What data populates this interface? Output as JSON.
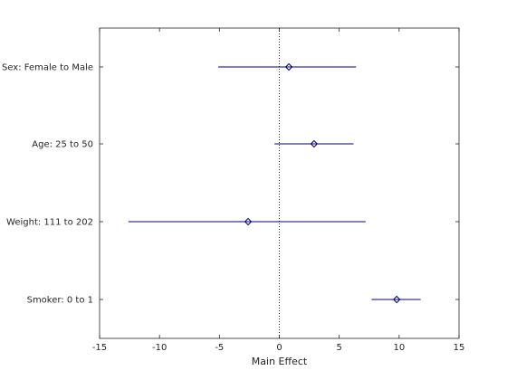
{
  "chart_data": {
    "type": "scatter",
    "title": "",
    "xlabel": "Main Effect",
    "ylabel": "",
    "xlim": [
      -15,
      15
    ],
    "xticks": [
      -15,
      -10,
      -5,
      0,
      5,
      10,
      15
    ],
    "grid": false,
    "reference_line": {
      "x": 0,
      "style": "dotted"
    },
    "colors": {
      "marker": "#00007f",
      "interval": "#00007f",
      "axes": "#262626",
      "reference": "#000000"
    },
    "rows": [
      {
        "label": "Sex: Female to Male",
        "estimate": 0.8,
        "lower": -5.1,
        "upper": 6.4
      },
      {
        "label": "Age: 25 to 50",
        "estimate": 2.9,
        "lower": -0.4,
        "upper": 6.2
      },
      {
        "label": "Weight: 111 to 202",
        "estimate": -2.6,
        "lower": -12.6,
        "upper": 7.2
      },
      {
        "label": "Smoker: 0 to 1",
        "estimate": 9.8,
        "lower": 7.7,
        "upper": 11.8
      }
    ]
  }
}
